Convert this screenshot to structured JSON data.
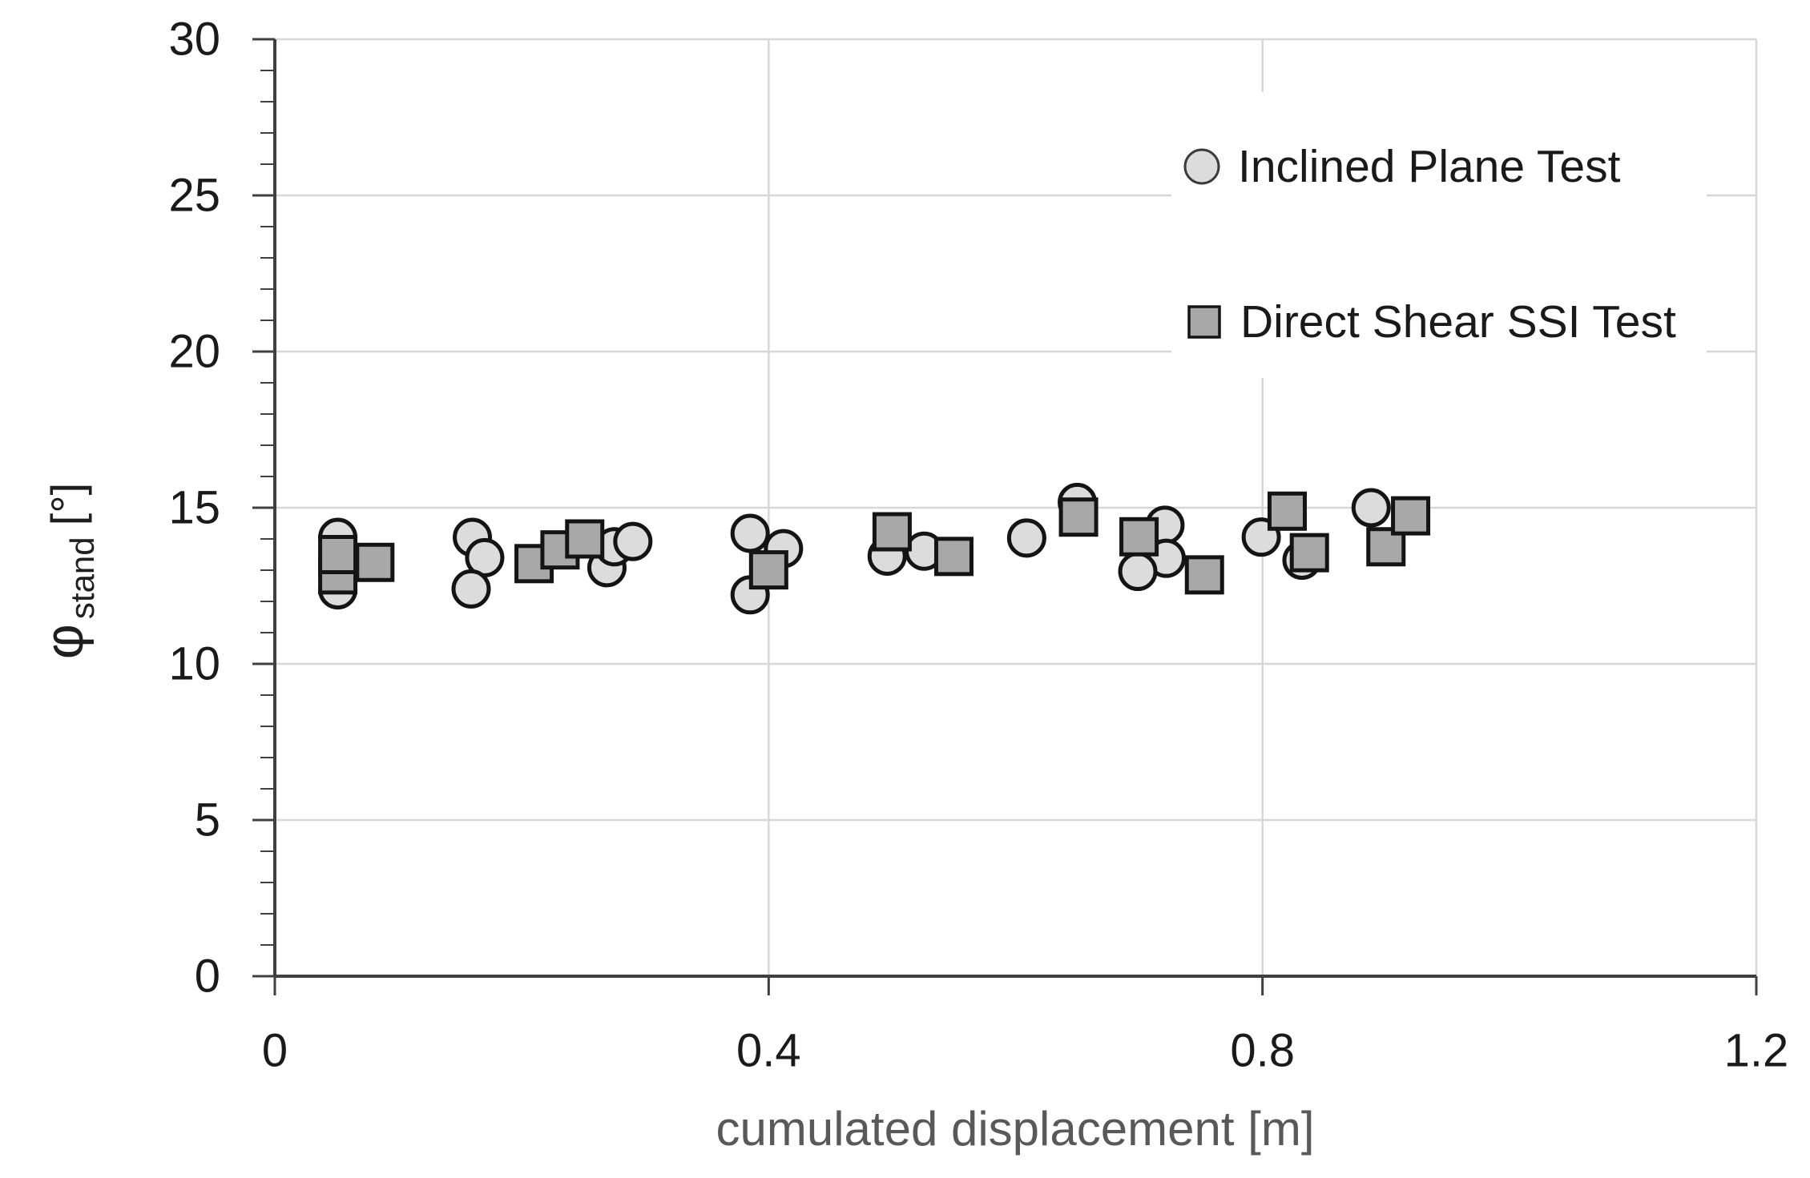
{
  "chart_data": {
    "type": "scatter",
    "xlabel": "cumulated displacement [m]",
    "ylabel": {
      "symbol": "φ",
      "subscript": "stand",
      "unit": "[°]"
    },
    "xlim": [
      0,
      1.2
    ],
    "ylim": [
      0,
      30
    ],
    "x_major_ticks": [
      0,
      0.4,
      0.8,
      1.2
    ],
    "x_tick_labels": [
      "0",
      "0.4",
      "0.8",
      "1.2"
    ],
    "y_major_ticks": [
      0,
      5,
      10,
      15,
      20,
      25,
      30
    ],
    "y_tick_labels": [
      "0",
      "5",
      "10",
      "15",
      "20",
      "25",
      "30"
    ],
    "y_minor_step": 1,
    "grid": {
      "h_values": [
        5,
        10,
        15,
        20,
        25,
        30
      ],
      "v_values": [
        0.4,
        0.8,
        1.2
      ]
    },
    "legend": {
      "position": "top-right",
      "entries": [
        "Inclined Plane Test",
        "Direct Shear SSI Test"
      ]
    },
    "series": [
      {
        "name": "Inclined Plane Test",
        "marker": "circle",
        "fill": "#dcdcdc",
        "stroke": "#141414",
        "points": [
          [
            0.051,
            14.05
          ],
          [
            0.051,
            12.37
          ],
          [
            0.16,
            14.05
          ],
          [
            0.17,
            13.4
          ],
          [
            0.159,
            12.4
          ],
          [
            0.269,
            13.08
          ],
          [
            0.275,
            13.75
          ],
          [
            0.29,
            13.92
          ],
          [
            0.385,
            14.18
          ],
          [
            0.412,
            13.69
          ],
          [
            0.385,
            12.21
          ],
          [
            0.496,
            13.45
          ],
          [
            0.526,
            13.61
          ],
          [
            0.609,
            14.03
          ],
          [
            0.65,
            15.17
          ],
          [
            0.721,
            14.44
          ],
          [
            0.722,
            13.38
          ],
          [
            0.699,
            12.96
          ],
          [
            0.799,
            14.06
          ],
          [
            0.832,
            13.32
          ],
          [
            0.888,
            15.0
          ]
        ]
      },
      {
        "name": "Direct Shear SSI Test",
        "marker": "square",
        "fill": "#a8a8a8",
        "stroke": "#141414",
        "points": [
          [
            0.051,
            12.85
          ],
          [
            0.051,
            13.5
          ],
          [
            0.081,
            13.25
          ],
          [
            0.21,
            13.21
          ],
          [
            0.231,
            13.65
          ],
          [
            0.251,
            14.0
          ],
          [
            0.4,
            13.01
          ],
          [
            0.5,
            14.23
          ],
          [
            0.55,
            13.44
          ],
          [
            0.651,
            14.7
          ],
          [
            0.7,
            14.07
          ],
          [
            0.753,
            12.85
          ],
          [
            0.82,
            14.89
          ],
          [
            0.838,
            13.56
          ],
          [
            0.9,
            13.75
          ],
          [
            0.92,
            14.74
          ]
        ]
      }
    ],
    "colors": {
      "background": "#ffffff",
      "grid": "#d7d7d7",
      "axis": "#404040",
      "tick_label": "#1a1a1a",
      "axis_title": "#595959",
      "legend_text": "#1a1a1a",
      "circle_fill": "#dcdcdc",
      "square_fill": "#a8a8a8",
      "marker_stroke": "#141414"
    }
  }
}
